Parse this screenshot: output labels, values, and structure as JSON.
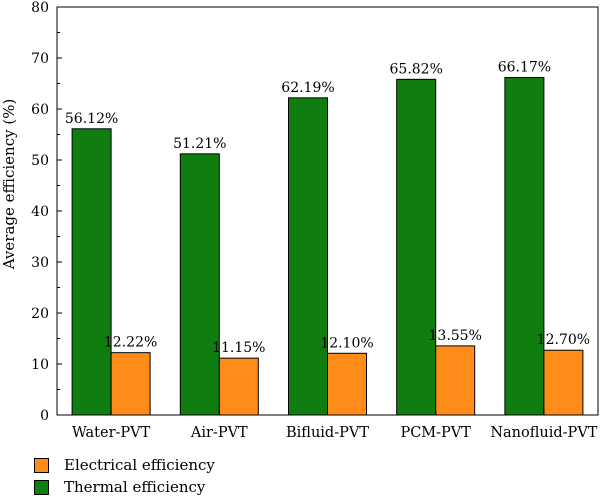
{
  "chart_data": {
    "type": "bar",
    "categories": [
      "Water-PVT",
      "Air-PVT",
      "Bifluid-PVT",
      "PCM-PVT",
      "Nanofluid-PVT"
    ],
    "series": [
      {
        "name": "Thermal efficiency",
        "color": "#0f7d0f",
        "values": [
          56.12,
          51.21,
          62.19,
          65.82,
          66.17
        ],
        "labels": [
          "56.12%",
          "51.21%",
          "62.19%",
          "65.82%",
          "66.17%"
        ]
      },
      {
        "name": "Electrical efficiency",
        "color": "#ff8c19",
        "values": [
          12.22,
          11.15,
          12.1,
          13.55,
          12.7
        ],
        "labels": [
          "12.22%",
          "11.15%",
          "12.10%",
          "13.55%",
          "12.70%"
        ]
      }
    ],
    "ylabel": "Average efficiency (%)",
    "xlabel": "",
    "ylim": [
      0,
      80
    ],
    "yticks": [
      0,
      10,
      20,
      30,
      40,
      50,
      60,
      70,
      80
    ],
    "grid": false
  },
  "legend": {
    "items": [
      {
        "label": "Electrical efficiency",
        "color": "#ff8c19"
      },
      {
        "label": "Thermal efficiency",
        "color": "#0f7d0f"
      }
    ]
  }
}
